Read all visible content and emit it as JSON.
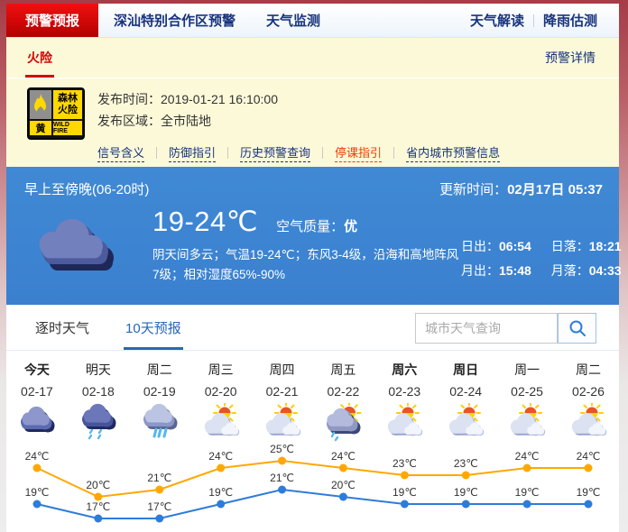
{
  "nav": {
    "tabs": [
      {
        "label": "预警预报",
        "active": true
      },
      {
        "label": "深汕特别合作区预警",
        "active": false
      },
      {
        "label": "天气监测",
        "active": false
      }
    ],
    "links": [
      {
        "label": "天气解读"
      },
      {
        "label": "降雨估测"
      }
    ]
  },
  "alert_bar": {
    "category": "火险",
    "detail_link": "预警详情"
  },
  "alert": {
    "badge": {
      "title": "森林火险",
      "level": "黄",
      "level_en": "WILD FIRE"
    },
    "publish_time_label": "发布时间：",
    "publish_time": "2019-01-21 16:10:00",
    "publish_area_label": "发布区域：",
    "publish_area": "全市陆地",
    "links": [
      {
        "label": "信号含义",
        "highlight": false
      },
      {
        "label": "防御指引",
        "highlight": false
      },
      {
        "label": "历史预警查询",
        "highlight": false
      },
      {
        "label": "停课指引",
        "highlight": true
      },
      {
        "label": "省内城市预警信息",
        "highlight": false
      }
    ]
  },
  "current": {
    "period": "早上至傍晚(06-20时)",
    "update_label": "更新时间：",
    "update_value": "02月17日 05:37",
    "temp_range": "19-24℃",
    "aqi_label": "空气质量：",
    "aqi_value": "优",
    "description": "阴天间多云；气温19-24℃；东风3-4级，沿海和高地阵风7级；相对湿度65%-90%",
    "weather_icon": "overcast",
    "sun_moon": {
      "sunrise_label": "日出：",
      "sunrise": "06:54",
      "sunset_label": "日落：",
      "sunset": "18:21",
      "moonrise_label": "月出：",
      "moonrise": "15:48",
      "moonset_label": "月落：",
      "moonset": "04:33"
    }
  },
  "forecast_section": {
    "tabs": [
      {
        "label": "逐时天气",
        "active": false
      },
      {
        "label": "10天预报",
        "active": true
      }
    ],
    "search_placeholder": "城市天气查询"
  },
  "chart_data": {
    "type": "line",
    "categories": [
      "今天",
      "明天",
      "周二",
      "周三",
      "周四",
      "周五",
      "周六",
      "周日",
      "周一",
      "周二"
    ],
    "dates": [
      "02-17",
      "02-18",
      "02-19",
      "02-20",
      "02-21",
      "02-22",
      "02-23",
      "02-24",
      "02-25",
      "02-26"
    ],
    "bold_days": [
      true,
      false,
      false,
      false,
      false,
      false,
      true,
      true,
      false,
      false
    ],
    "icons": [
      "overcast",
      "rain",
      "heavy-rain",
      "partly-cloudy",
      "partly-cloudy",
      "sun-shower",
      "partly-cloudy",
      "partly-cloudy",
      "partly-cloudy",
      "partly-cloudy"
    ],
    "series": [
      {
        "name": "high-temp",
        "color": "#ffa800",
        "values": [
          24,
          20,
          21,
          24,
          25,
          24,
          23,
          23,
          24,
          24
        ]
      },
      {
        "name": "low-temp",
        "color": "#2e7cd9",
        "values": [
          19,
          17,
          17,
          19,
          21,
          20,
          19,
          19,
          19,
          19
        ]
      }
    ],
    "unit": "℃",
    "ylim": [
      15,
      27
    ],
    "grid": false,
    "legend": "none"
  },
  "colors": {
    "accent_red": "#d50000",
    "nav_blue": "#17337d",
    "panel_yellow": "#fcf9d9",
    "sky_blue": "#3d86d2",
    "tab_active_blue": "#2a66b8",
    "high_line": "#ffa800",
    "low_line": "#2e7cd9"
  }
}
